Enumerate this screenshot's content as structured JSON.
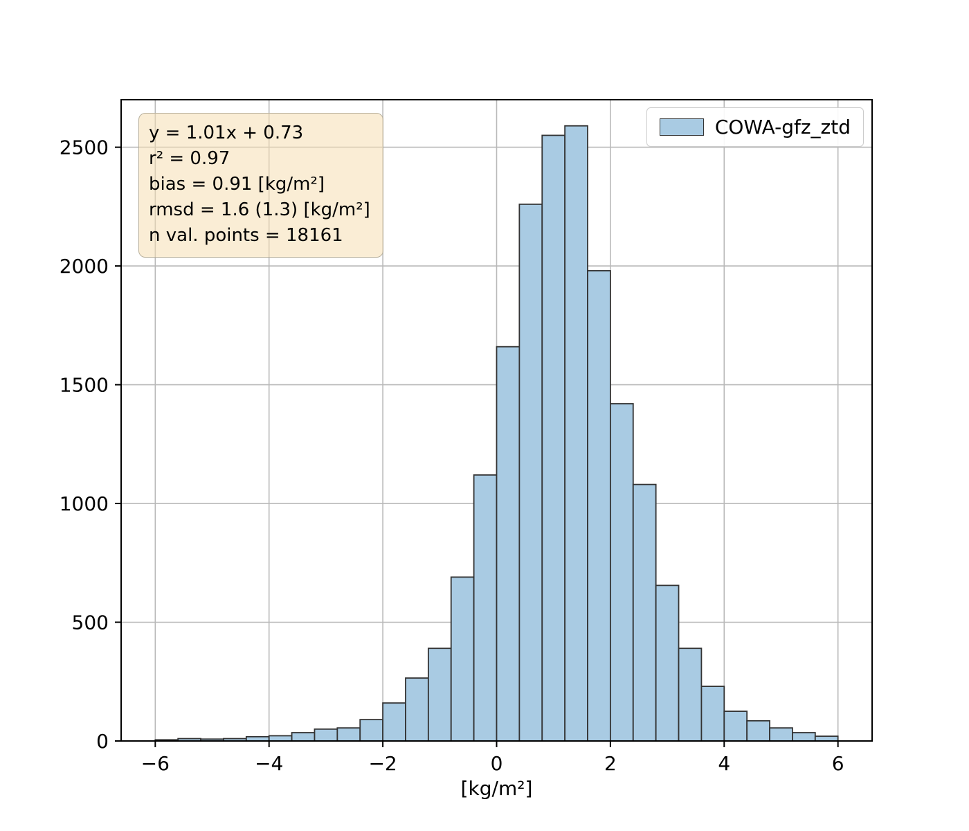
{
  "figure": {
    "background": "#ffffff"
  },
  "annotation": {
    "bg": "#f5deb3",
    "border": "#b8b09c",
    "lines": [
      "y = 1.01x + 0.73",
      "r² = 0.97",
      "bias = 0.91 [kg/m²]",
      "rmsd = 1.6 (1.3) [kg/m²]",
      "n val. points = 18161"
    ]
  },
  "legend": {
    "label": "COWA-gfz_ztd",
    "position": "upper-right"
  },
  "chart_data": {
    "type": "bar",
    "subtype": "histogram",
    "title": "",
    "xlabel": "[kg/m²]",
    "ylabel": "",
    "series_name": "COWA-gfz_ztd",
    "grid": true,
    "legend_position": "upper-right",
    "xlim": [
      -6.6,
      6.6
    ],
    "ylim": [
      0,
      2700
    ],
    "bin_width": 0.4,
    "bin_edges": [
      -6.0,
      -5.6,
      -5.2,
      -4.8,
      -4.4,
      -4.0,
      -3.6,
      -3.2,
      -2.8,
      -2.4,
      -2.0,
      -1.6,
      -1.2,
      -0.8,
      -0.4,
      0.0,
      0.4,
      0.8,
      1.2,
      1.6,
      2.0,
      2.4,
      2.8,
      3.2,
      3.6,
      4.0,
      4.4,
      4.8,
      5.2,
      5.6,
      6.0
    ],
    "values": [
      5,
      10,
      8,
      10,
      18,
      22,
      35,
      50,
      55,
      90,
      160,
      265,
      390,
      690,
      1120,
      1660,
      2260,
      2550,
      2590,
      1980,
      1420,
      1080,
      655,
      390,
      230,
      125,
      85,
      55,
      35,
      20
    ],
    "n_points": 18161,
    "xticks": [
      {
        "value": -6,
        "label": "−6"
      },
      {
        "value": -4,
        "label": "−4"
      },
      {
        "value": -2,
        "label": "−2"
      },
      {
        "value": 0,
        "label": "0"
      },
      {
        "value": 2,
        "label": "2"
      },
      {
        "value": 4,
        "label": "4"
      },
      {
        "value": 6,
        "label": "6"
      }
    ],
    "yticks": [
      {
        "value": 0,
        "label": "0"
      },
      {
        "value": 500,
        "label": "500"
      },
      {
        "value": 1000,
        "label": "1000"
      },
      {
        "value": 1500,
        "label": "1500"
      },
      {
        "value": 2000,
        "label": "2000"
      },
      {
        "value": 2500,
        "label": "2500"
      }
    ],
    "colors": {
      "bar_fill": "#a9cbe3",
      "bar_edge": "#333333",
      "grid": "#b9b9b9",
      "spine": "#000000",
      "text": "#000000"
    }
  }
}
